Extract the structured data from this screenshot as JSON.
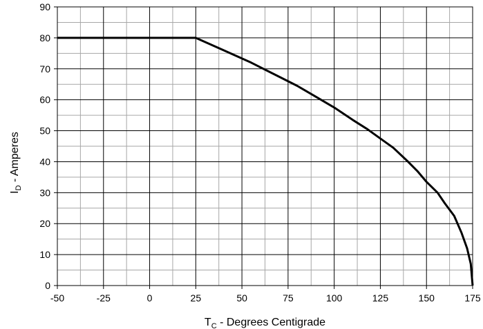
{
  "chart_data": {
    "type": "line",
    "title": "",
    "xlabel": {
      "main": "T",
      "sub": "C",
      "rest": " - Degrees Centigrade"
    },
    "ylabel": {
      "main": "I",
      "sub": "D",
      "rest": " - Amperes"
    },
    "xlim": [
      -50,
      175
    ],
    "ylim": [
      0,
      90
    ],
    "x_ticks": [
      -50,
      -25,
      0,
      25,
      50,
      75,
      100,
      125,
      150,
      175
    ],
    "y_ticks": [
      0,
      10,
      20,
      30,
      40,
      50,
      60,
      70,
      80,
      90
    ],
    "x_minor_step": 12.5,
    "y_minor_step": 5,
    "grid": true,
    "series": [
      {
        "color": "#000000",
        "x": [
          -50,
          25,
          40,
          55,
          70,
          80,
          90,
          100,
          110,
          118,
          125,
          132,
          140,
          145,
          150,
          156,
          160,
          165,
          169,
          172,
          174,
          175
        ],
        "y": [
          80,
          80,
          76,
          72,
          67.5,
          64.5,
          61,
          57.5,
          53.5,
          50.5,
          47.5,
          44.5,
          40,
          37,
          33.5,
          30,
          26.5,
          22.5,
          17,
          12,
          7,
          0
        ]
      }
    ]
  }
}
